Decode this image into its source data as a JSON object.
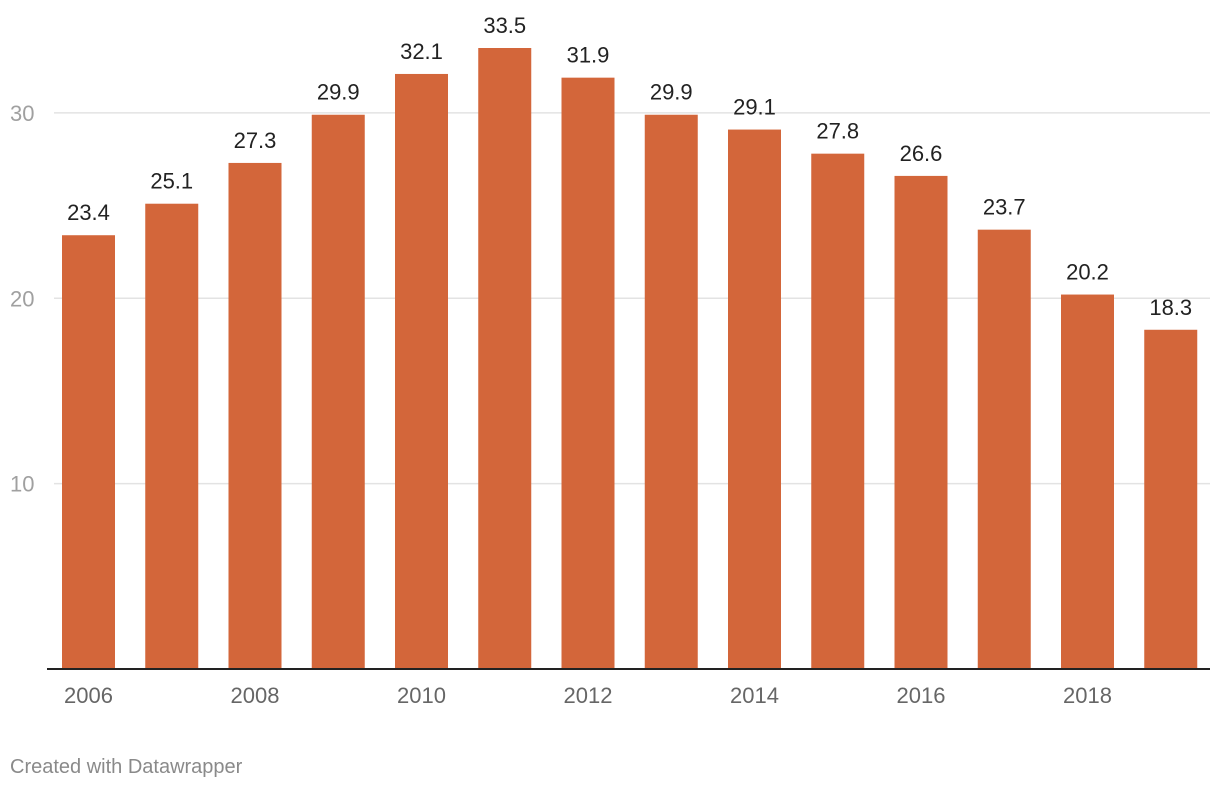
{
  "chart_data": {
    "type": "bar",
    "title": "",
    "xlabel": "",
    "ylabel": "",
    "categories": [
      "2006",
      "2007",
      "2008",
      "2009",
      "2010",
      "2011",
      "2012",
      "2013",
      "2014",
      "2015",
      "2016",
      "2017",
      "2018",
      "2019"
    ],
    "values": [
      23.4,
      25.1,
      27.3,
      29.9,
      32.1,
      33.5,
      31.9,
      29.9,
      29.1,
      27.8,
      26.6,
      23.7,
      20.2,
      18.3
    ],
    "value_labels": [
      "23.4",
      "25.1",
      "27.3",
      "29.9",
      "32.1",
      "33.5",
      "31.9",
      "29.9",
      "29.1",
      "27.8",
      "26.6",
      "23.7",
      "20.2",
      "18.3"
    ],
    "ylim": [
      0,
      33.5
    ],
    "y_ticks": [
      10,
      20,
      30
    ],
    "y_tick_labels": [
      "10",
      "20",
      "30"
    ],
    "x_tick_labels": [
      "2006",
      "2008",
      "2010",
      "2012",
      "2014",
      "2016",
      "2018"
    ],
    "x_tick_indices": [
      0,
      2,
      4,
      6,
      8,
      10,
      12
    ],
    "grid": true,
    "legend": "none",
    "bar_color": "#d3663a"
  },
  "footer": {
    "credit": "Created with Datawrapper"
  }
}
